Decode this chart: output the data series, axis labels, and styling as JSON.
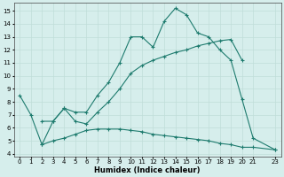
{
  "line1_x": [
    0,
    1,
    2,
    3,
    4,
    5,
    6,
    7,
    8,
    9,
    10,
    11,
    12,
    13,
    14,
    15,
    16,
    17,
    18,
    19,
    20,
    21,
    23
  ],
  "line1_y": [
    8.5,
    7.0,
    4.7,
    6.5,
    7.5,
    7.2,
    7.2,
    8.5,
    9.5,
    11.0,
    13.0,
    13.0,
    12.2,
    14.2,
    15.2,
    14.7,
    13.3,
    13.0,
    12.0,
    11.2,
    8.2,
    5.2,
    4.3
  ],
  "line2_x": [
    2,
    3,
    4,
    5,
    6,
    7,
    8,
    9,
    10,
    11,
    12,
    13,
    14,
    15,
    16,
    17,
    18,
    19,
    20
  ],
  "line2_y": [
    6.5,
    6.5,
    7.5,
    6.5,
    6.3,
    7.2,
    8.0,
    9.0,
    10.2,
    10.8,
    11.2,
    11.5,
    11.8,
    12.0,
    12.3,
    12.5,
    12.7,
    12.8,
    11.2
  ],
  "line3_x": [
    2,
    3,
    4,
    5,
    6,
    7,
    8,
    9,
    10,
    11,
    12,
    13,
    14,
    15,
    16,
    17,
    18,
    19,
    20,
    21,
    23
  ],
  "line3_y": [
    4.7,
    5.0,
    5.2,
    5.5,
    5.8,
    5.9,
    5.9,
    5.9,
    5.8,
    5.7,
    5.5,
    5.4,
    5.3,
    5.2,
    5.1,
    5.0,
    4.8,
    4.7,
    4.5,
    4.5,
    4.3
  ],
  "line_color": "#1e7b6e",
  "bg_color": "#d6eeec",
  "grid_major_color": "#c0ddd9",
  "grid_minor_color": "#e0f0ee",
  "xlabel": "Humidex (Indice chaleur)",
  "xlim": [
    -0.5,
    23.5
  ],
  "ylim": [
    3.8,
    15.6
  ],
  "yticks": [
    4,
    5,
    6,
    7,
    8,
    9,
    10,
    11,
    12,
    13,
    14,
    15
  ],
  "xticks": [
    0,
    1,
    2,
    3,
    4,
    5,
    6,
    7,
    8,
    9,
    10,
    11,
    12,
    13,
    14,
    15,
    16,
    17,
    18,
    19,
    20,
    21,
    23
  ]
}
